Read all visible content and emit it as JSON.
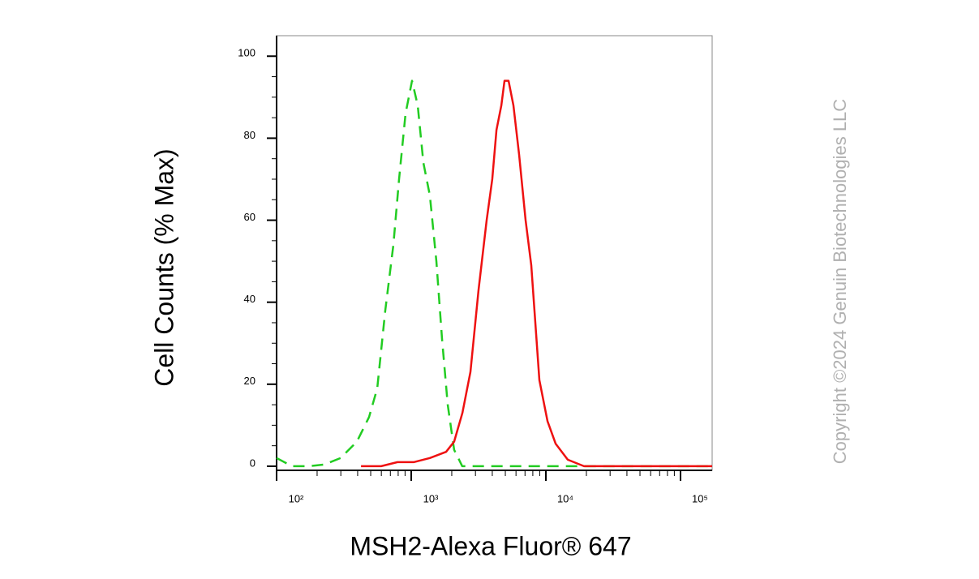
{
  "chart_data": {
    "type": "line",
    "xlabel": "MSH2-Alexa Fluor® 647",
    "ylabel": "Cell Counts (% Max)",
    "copyright": "Copyright ©2024 Genuin Biotechnologies LLC",
    "xscale": "log",
    "xlim": [
      100,
      171800
    ],
    "ylim": [
      -1,
      105
    ],
    "xticks": [
      {
        "value": 100,
        "label": "10²"
      },
      {
        "value": 1000,
        "label": "10³"
      },
      {
        "value": 10000,
        "label": "10⁴"
      },
      {
        "value": 100000,
        "label": "10⁵"
      }
    ],
    "xminorticks": [
      200,
      300,
      400,
      500,
      600,
      700,
      800,
      900,
      2000,
      3000,
      4000,
      5000,
      6000,
      7000,
      8000,
      9000,
      20000,
      30000,
      40000,
      50000,
      60000,
      70000,
      80000,
      90000
    ],
    "yticks": [
      0,
      20,
      40,
      60,
      80,
      100
    ],
    "yminorticks": [
      5,
      10,
      15,
      25,
      30,
      35,
      45,
      50,
      55,
      65,
      70,
      75,
      85,
      90,
      95
    ],
    "series": [
      {
        "color": "#22cc22",
        "line_style": "dashed",
        "x": [
          100,
          130,
          172,
          226,
          299,
          395,
          486,
          559,
          642,
          737,
          812,
          908,
          1014,
          1117,
          1231,
          1376,
          1538,
          1694,
          1866,
          2084,
          2394,
          3631,
          14550,
          171800
        ],
        "values": [
          2,
          0,
          0,
          0.4,
          2,
          6,
          12,
          19,
          38,
          54,
          70,
          86,
          94,
          88,
          74,
          66,
          50,
          31,
          15,
          4,
          0,
          0,
          0,
          0
        ]
      },
      {
        "color": "#ee1111",
        "line_style": "solid",
        "x": [
          424,
          598,
          790,
          1043,
          1376,
          1816,
          2084,
          2399,
          2754,
          3162,
          3631,
          4000,
          4295,
          4667,
          4932,
          5284,
          5741,
          6324,
          7066,
          7796,
          8953,
          10280,
          11810,
          14550,
          19190,
          171800
        ],
        "values": [
          0,
          0,
          1,
          1,
          2,
          3.5,
          6,
          13,
          23,
          43,
          60,
          70,
          82,
          88,
          94,
          94,
          88,
          76,
          60,
          49,
          21,
          11,
          5.5,
          1.6,
          0,
          0
        ]
      }
    ]
  }
}
